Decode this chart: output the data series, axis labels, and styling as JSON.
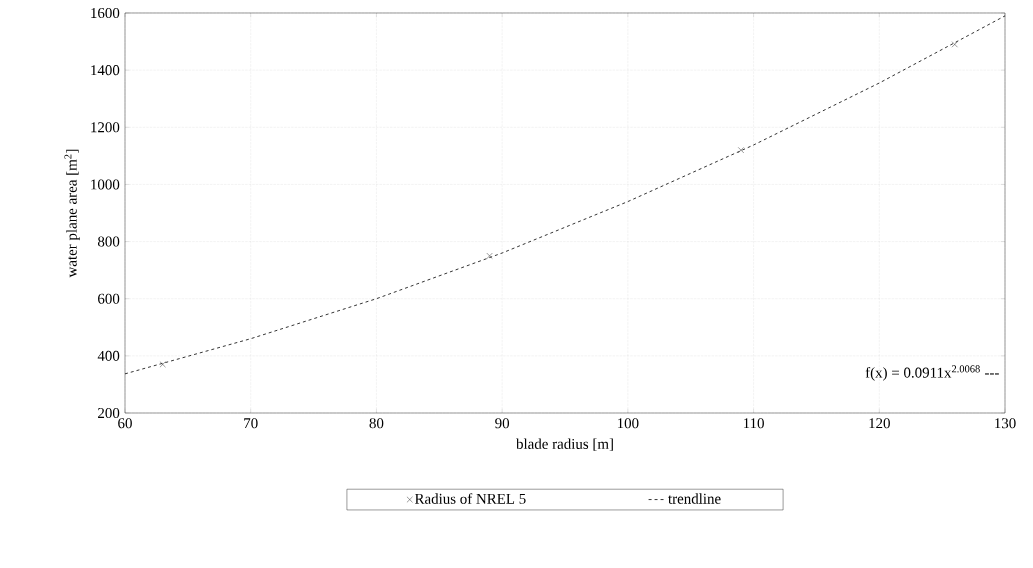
{
  "chart_data": {
    "type": "scatter",
    "xlabel": "blade radius [m]",
    "ylabel": "water plane area [m$^{2}$]",
    "xlim": [
      60,
      130
    ],
    "ylim": [
      200,
      1600
    ],
    "xticks": [
      60,
      70,
      80,
      90,
      100,
      110,
      120,
      130
    ],
    "yticks": [
      200,
      400,
      600,
      800,
      1000,
      1200,
      1400,
      1600
    ],
    "grid": true,
    "legend": "bottom",
    "annotations": [
      "f(x) = 0.0911x$^{2.0068}$ ---"
    ],
    "series": [
      {
        "name": "Radius of NREL 5",
        "type": "scatter",
        "color": "#000000",
        "marker": "cross",
        "x": [
          63,
          89,
          109,
          126
        ],
        "values": [
          370,
          750,
          1120,
          1490
        ]
      },
      {
        "name": "trendline",
        "type": "line",
        "color": "#000000",
        "marker": "none",
        "line_style": "dashed",
        "x": [
          60,
          70,
          80,
          90,
          100,
          110,
          120,
          130
        ],
        "values": [
          337,
          460,
          600,
          760,
          940,
          1138,
          1355,
          1590
        ]
      }
    ]
  }
}
